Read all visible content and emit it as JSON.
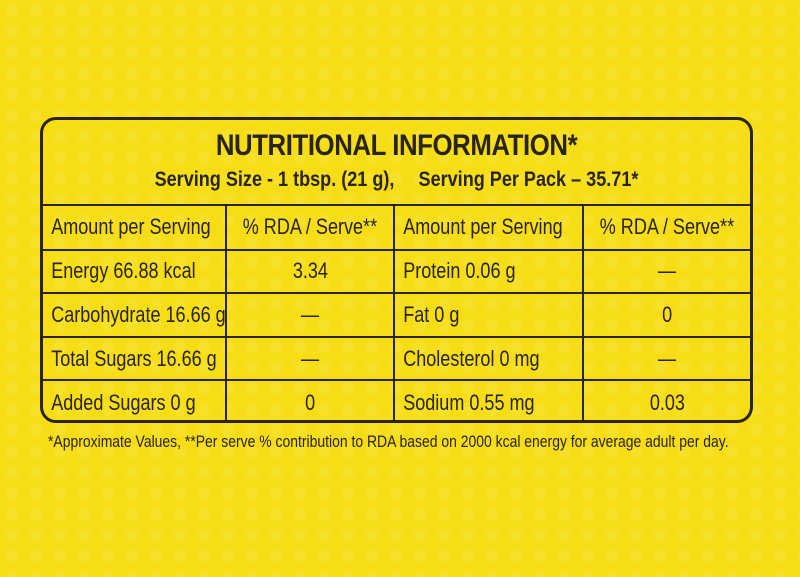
{
  "panel": {
    "title": "NUTRITIONAL INFORMATION*",
    "serving_size": "Serving Size - 1 tbsp. (21 g),",
    "serving_per_pack": "Serving Per Pack – 35.71*"
  },
  "table": {
    "headers": [
      "Amount per Serving",
      "% RDA / Serve**",
      "Amount per Serving",
      "% RDA / Serve**"
    ],
    "rows": [
      [
        "Energy 66.88 kcal",
        "3.34",
        "Protein 0.06 g",
        "—"
      ],
      [
        "Carbohydrate 16.66 g",
        "—",
        "Fat 0 g",
        "0"
      ],
      [
        "Total Sugars 16.66 g",
        "—",
        "Cholesterol 0 mg",
        "—"
      ],
      [
        "Added Sugars 0 g",
        "0",
        "Sodium 0.55 mg",
        "0.03"
      ]
    ]
  },
  "footnote": "*Approximate Values,  **Per serve % contribution to RDA based on 2000 kcal energy for average adult per day."
}
